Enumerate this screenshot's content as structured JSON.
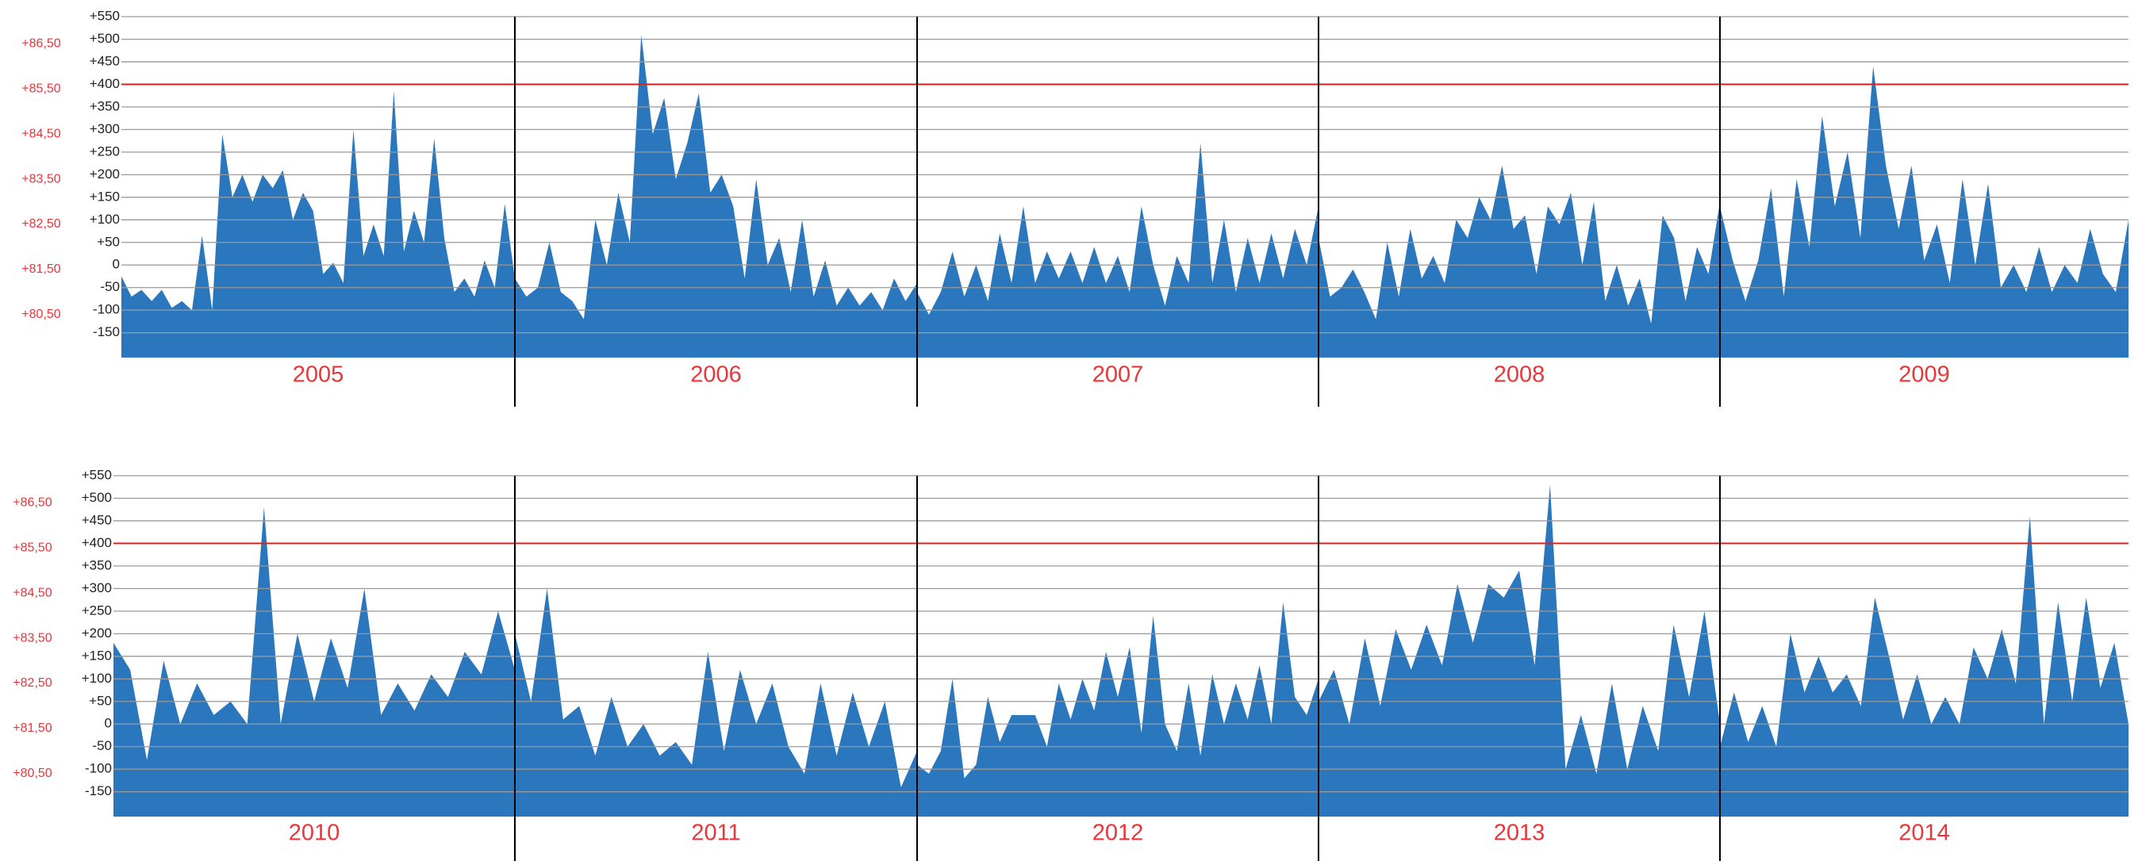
{
  "chart_data": [
    {
      "type": "area",
      "color": "#2a77bd",
      "hline": 400,
      "hline_color": "#e02020",
      "label_color": "#e8363b",
      "categories": [
        "2005",
        "2006",
        "2007",
        "2008",
        "2009"
      ],
      "ylim": [
        -205,
        550
      ],
      "yticks": [
        {
          "value": 550,
          "label": "+550"
        },
        {
          "value": 500,
          "label": "+500"
        },
        {
          "value": 450,
          "label": "+450"
        },
        {
          "value": 400,
          "label": "+400"
        },
        {
          "value": 350,
          "label": "+350"
        },
        {
          "value": 300,
          "label": "+300"
        },
        {
          "value": 250,
          "label": "+250"
        },
        {
          "value": 200,
          "label": "+200"
        },
        {
          "value": 150,
          "label": "+150"
        },
        {
          "value": 100,
          "label": "+100"
        },
        {
          "value": 50,
          "label": "+50"
        },
        0,
        -50,
        -100,
        -150
      ],
      "y2lim": [
        79.55,
        87.1
      ],
      "y2ticks": [
        {
          "value": 86.5,
          "label": "+86,50"
        },
        {
          "value": 85.5,
          "label": "+85,50"
        },
        {
          "value": 84.5,
          "label": "+84,50"
        },
        {
          "value": 83.5,
          "label": "+83,50"
        },
        {
          "value": 82.5,
          "label": "+82,50"
        },
        {
          "value": 81.5,
          "label": "+81,50"
        },
        {
          "value": 80.5,
          "label": "+80,50"
        }
      ],
      "values": [
        [
          -25,
          -70,
          -55,
          -80,
          -55,
          -95,
          -80,
          -100,
          65,
          -100,
          290,
          150,
          200,
          140,
          200,
          170,
          210,
          100,
          160,
          120,
          -20,
          5,
          -40,
          300,
          20,
          90,
          20,
          385,
          30,
          120,
          50,
          280,
          60,
          -60,
          -30,
          -70,
          10,
          -50,
          135,
          -30
        ],
        [
          -30,
          -70,
          -50,
          50,
          -60,
          -80,
          -120,
          100,
          0,
          160,
          50,
          510,
          290,
          370,
          190,
          270,
          380,
          160,
          200,
          130,
          -30,
          190,
          0,
          60,
          -60,
          100,
          -70,
          10,
          -90,
          -50,
          -90,
          -60,
          -100,
          -30,
          -80,
          -40
        ],
        [
          -60,
          -110,
          -60,
          30,
          -70,
          0,
          -80,
          70,
          -40,
          130,
          -40,
          30,
          -30,
          30,
          -40,
          40,
          -40,
          20,
          -60,
          130,
          0,
          -90,
          20,
          -40,
          270,
          -40,
          100,
          -60,
          60,
          -40,
          70,
          -30,
          80,
          0,
          130
        ],
        [
          60,
          -70,
          -50,
          -10,
          -60,
          -120,
          50,
          -70,
          80,
          -30,
          20,
          -40,
          100,
          60,
          150,
          100,
          220,
          80,
          110,
          -20,
          130,
          90,
          160,
          0,
          140,
          -80,
          0,
          -90,
          -30,
          -130,
          110,
          60,
          -80,
          40,
          -20,
          140
        ],
        [
          130,
          10,
          -80,
          10,
          170,
          -70,
          190,
          40,
          330,
          130,
          250,
          60,
          440,
          220,
          80,
          220,
          10,
          90,
          -40,
          190,
          0,
          180,
          -50,
          0,
          -60,
          40,
          -60,
          0,
          -40,
          80,
          -20,
          -60,
          100
        ]
      ]
    },
    {
      "type": "area",
      "color": "#2a77bd",
      "hline": 400,
      "hline_color": "#e02020",
      "label_color": "#e8363b",
      "categories": [
        "2010",
        "2011",
        "2012",
        "2013",
        "2014"
      ],
      "ylim": [
        -205,
        550
      ],
      "yticks": [
        {
          "value": 550,
          "label": "+550"
        },
        {
          "value": 500,
          "label": "+500"
        },
        {
          "value": 450,
          "label": "+450"
        },
        {
          "value": 400,
          "label": "+400"
        },
        {
          "value": 350,
          "label": "+350"
        },
        {
          "value": 300,
          "label": "+300"
        },
        {
          "value": 250,
          "label": "+250"
        },
        {
          "value": 200,
          "label": "+200"
        },
        {
          "value": 150,
          "label": "+150"
        },
        {
          "value": 100,
          "label": "+100"
        },
        {
          "value": 50,
          "label": "+50"
        },
        0,
        -50,
        -100,
        -150
      ],
      "y2lim": [
        79.55,
        87.1
      ],
      "y2ticks": [
        {
          "value": 86.5,
          "label": "+86,50"
        },
        {
          "value": 85.5,
          "label": "+85,50"
        },
        {
          "value": 84.5,
          "label": "+84,50"
        },
        {
          "value": 83.5,
          "label": "+83,50"
        },
        {
          "value": 82.5,
          "label": "+82,50"
        },
        {
          "value": 81.5,
          "label": "+81,50"
        },
        {
          "value": 80.5,
          "label": "+80,50"
        }
      ],
      "values": [
        [
          180,
          120,
          -80,
          140,
          0,
          90,
          20,
          50,
          0,
          480,
          0,
          200,
          50,
          190,
          80,
          300,
          20,
          90,
          30,
          110,
          60,
          160,
          110,
          250,
          120
        ],
        [
          200,
          50,
          300,
          10,
          40,
          -70,
          60,
          -50,
          0,
          -70,
          -40,
          -90,
          160,
          -60,
          120,
          0,
          90,
          -50,
          -110,
          90,
          -70,
          70,
          -50,
          50,
          -140,
          -60
        ],
        [
          -90,
          -110,
          -60,
          100,
          -120,
          -90,
          60,
          -40,
          20,
          20,
          20,
          -50,
          90,
          10,
          100,
          30,
          160,
          60,
          170,
          -20,
          240,
          0,
          -60,
          90,
          -70,
          110,
          0,
          90,
          10,
          130,
          0,
          270,
          60,
          20,
          100
        ],
        [
          50,
          120,
          0,
          190,
          40,
          210,
          120,
          220,
          130,
          310,
          180,
          310,
          280,
          340,
          130,
          530,
          -100,
          20,
          -110,
          90,
          -100,
          40,
          -60,
          220,
          60,
          250,
          0
        ],
        [
          -50,
          70,
          -40,
          40,
          -50,
          200,
          70,
          150,
          70,
          110,
          40,
          280,
          150,
          10,
          110,
          0,
          60,
          0,
          170,
          100,
          210,
          90,
          460,
          0,
          270,
          50,
          280,
          80,
          180,
          0
        ]
      ]
    }
  ]
}
